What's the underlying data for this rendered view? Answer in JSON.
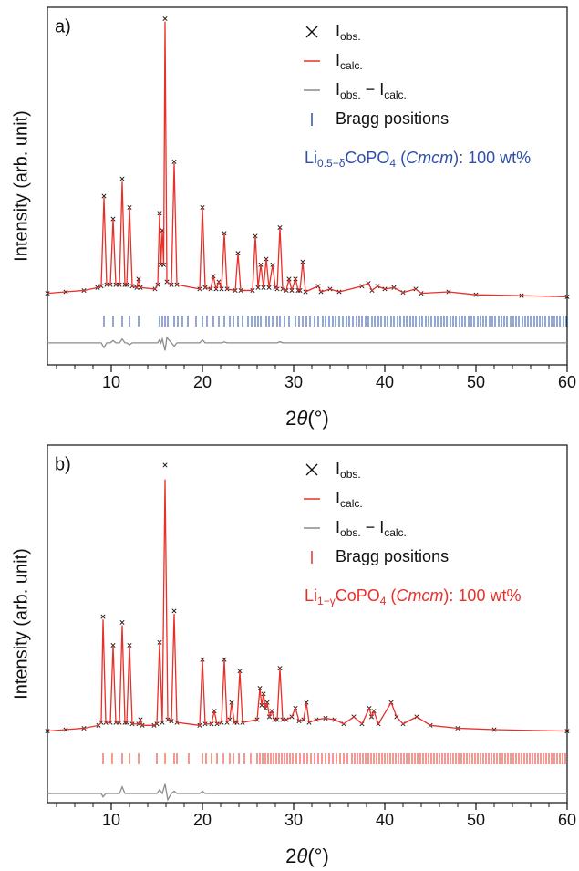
{
  "chart_data": [
    {
      "type": "line",
      "panel_label": "a)",
      "ylabel": "Intensity (arb. unit)",
      "xlabel": [
        {
          "text": "2"
        },
        {
          "text": "θ",
          "style": "italic"
        },
        {
          "text": "(°)"
        }
      ],
      "xlim": [
        3,
        60
      ],
      "ylim": [
        -25,
        100
      ],
      "xticks": [
        10,
        20,
        30,
        40,
        50,
        60
      ],
      "xminorticks": [
        4,
        6,
        8,
        12,
        14,
        16,
        18,
        22,
        24,
        26,
        28,
        32,
        34,
        36,
        38,
        42,
        44,
        46,
        48,
        52,
        54,
        56,
        58
      ],
      "x": [
        3,
        5,
        7,
        8.5,
        8.9,
        9.2,
        9.5,
        9.9,
        10.2,
        10.5,
        10.9,
        11.2,
        11.5,
        11.7,
        12.0,
        12.3,
        12.8,
        13.0,
        13.2,
        14.8,
        15.1,
        15.3,
        15.45,
        15.6,
        15.75,
        15.9,
        16.1,
        16.6,
        16.9,
        17.2,
        19.7,
        20.0,
        20.3,
        20.9,
        21.2,
        21.5,
        21.8,
        22.1,
        22.4,
        22.7,
        23.6,
        23.9,
        24.2,
        25.5,
        25.8,
        26.1,
        26.4,
        26.7,
        27.0,
        27.3,
        27.7,
        28.0,
        28.2,
        28.5,
        28.8,
        29.2,
        29.5,
        29.8,
        30.2,
        30.5,
        30.7,
        31.0,
        31.3,
        32.7,
        33,
        34,
        35,
        37.5,
        38.2,
        38.6,
        39.2,
        40,
        41,
        42,
        43.4,
        44,
        47,
        50,
        55,
        60
      ],
      "series": [
        {
          "name": [
            {
              "text": "I"
            },
            {
              "text": "obs.",
              "style": "sub"
            }
          ],
          "kind": "marker",
          "color": "#111111",
          "values": [
            0,
            0.5,
            1,
            2,
            2.5,
            34,
            3,
            3,
            26,
            3,
            3,
            40,
            3,
            3,
            30,
            2.5,
            2,
            5,
            2,
            1.5,
            3,
            28,
            10,
            22,
            10,
            96,
            4,
            3,
            46,
            3,
            1.5,
            30,
            2,
            1.5,
            6,
            1.5,
            4,
            1.5,
            21,
            1.5,
            1,
            14,
            1,
            1,
            20,
            2,
            10,
            2,
            12,
            2,
            10,
            2,
            1.5,
            23,
            1.5,
            1,
            5,
            1,
            5,
            1,
            1,
            11,
            0.5,
            2.5,
            0.5,
            1.5,
            0.5,
            2.5,
            3.5,
            1,
            2.5,
            1.5,
            2,
            0.3,
            1.5,
            0,
            0.5,
            -0.5,
            -0.8,
            -1.2
          ]
        },
        {
          "name": [
            {
              "text": "I"
            },
            {
              "text": "calc.",
              "style": "sub"
            }
          ],
          "kind": "line",
          "color": "#e8302a",
          "values": [
            0,
            0.5,
            1,
            2,
            2.5,
            33.5,
            3,
            3,
            26,
            3,
            3,
            39,
            3,
            3,
            30,
            2.5,
            2,
            5,
            2,
            1.5,
            3,
            28,
            10,
            22,
            10,
            95,
            4,
            3,
            45.5,
            3,
            1.5,
            30,
            2,
            1.5,
            6,
            1.5,
            4,
            1.5,
            21,
            1.5,
            1,
            14,
            1,
            1,
            20,
            2,
            10,
            2,
            12,
            2,
            10,
            2,
            1.5,
            23,
            1.5,
            1,
            5,
            1,
            5,
            1,
            1,
            11,
            0.5,
            2.5,
            0.5,
            1.5,
            0.5,
            2.5,
            3.5,
            1,
            2.5,
            1.5,
            2,
            0.3,
            1.5,
            0,
            0.5,
            -0.5,
            -0.8,
            -1.2
          ]
        },
        {
          "name": [
            {
              "text": "I"
            },
            {
              "text": "obs.",
              "style": "sub"
            },
            {
              "text": " − I"
            },
            {
              "text": "calc.",
              "style": "sub"
            }
          ],
          "kind": "line",
          "color": "#8c8c8c",
          "values": [
            -17.3,
            -17.3,
            -17.3,
            -17.3,
            -17.3,
            -19,
            -17.3,
            -17.3,
            -16.5,
            -17.3,
            -17.3,
            -16,
            -17.3,
            -17.3,
            -18,
            -17.3,
            -17.3,
            -17.3,
            -17.3,
            -17.3,
            -17.3,
            -16.2,
            -17.3,
            -16,
            -18,
            -20,
            -15.5,
            -17.3,
            -18.5,
            -17.3,
            -17.3,
            -16.3,
            -17.3,
            -17.3,
            -17.3,
            -17.3,
            -17.3,
            -17.3,
            -17,
            -17.3,
            -17.3,
            -17.3,
            -17.3,
            -17.3,
            -17.3,
            -17.3,
            -17.3,
            -17.3,
            -17.3,
            -17.3,
            -17.3,
            -17.3,
            -17.3,
            -16.9,
            -17.3,
            -17.3,
            -17.3,
            -17.3,
            -17.3,
            -17.3,
            -17.3,
            -17.3,
            -17.3,
            -17.3,
            -17.3,
            -17.3,
            -17.3,
            -17.3,
            -17.3,
            -17.3,
            -17.3,
            -17.3,
            -17.3,
            -17.3,
            -17.3,
            -17.3,
            -17.3,
            -17.3,
            -17.3,
            -17.3
          ]
        },
        {
          "name": [
            {
              "text": "Bragg positions"
            }
          ],
          "kind": "tick",
          "color": "#2f4faa",
          "positions": [
            9.2,
            10.2,
            11.2,
            12,
            13,
            15.3,
            15.6,
            15.9,
            16.2,
            16.9,
            17.3,
            17.8,
            18.4,
            19.3,
            20,
            20.5,
            21.2,
            21.8,
            22.4,
            23,
            23.4,
            23.9,
            24.4,
            25,
            25.4,
            25.8,
            26.1,
            26.4,
            27,
            27.3,
            27.7,
            28.2,
            28.5,
            29,
            29.5,
            30.2,
            30.6,
            31,
            31.4,
            31.8,
            32.3,
            32.7,
            33.2,
            33.5,
            33.9,
            34.3,
            34.6,
            35,
            35.4,
            35.8,
            36.1,
            36.5,
            36.9,
            37.2,
            37.5,
            37.9,
            38.2,
            38.6,
            38.9,
            39.3,
            39.6,
            40,
            40.3,
            40.7,
            41,
            41.4,
            41.7,
            42.1,
            42.4,
            42.8,
            43.1,
            43.4,
            43.8,
            44.1,
            44.5,
            44.8,
            45.1,
            45.5,
            45.8,
            46.2,
            46.5,
            46.8,
            47.2,
            47.5,
            47.8,
            48.2,
            48.5,
            48.8,
            49.2,
            49.5,
            49.8,
            50.2,
            50.5,
            50.8,
            51.1,
            51.5,
            51.8,
            52.1,
            52.5,
            52.8,
            53.1,
            53.4,
            53.8,
            54.1,
            54.4,
            54.7,
            55.1,
            55.4,
            55.7,
            56,
            56.4,
            56.7,
            57,
            57.3,
            57.6,
            58,
            58.3,
            58.6,
            58.9,
            59.2,
            59.6,
            59.9
          ]
        }
      ],
      "annotation": [
        {
          "text": "Li"
        },
        {
          "text": "0.5−δ",
          "style": "sub"
        },
        {
          "text": "CoPO"
        },
        {
          "text": "4",
          "style": "sub"
        },
        {
          "text": " ("
        },
        {
          "text": "Cmcm",
          "style": "italic"
        },
        {
          "text": "): 100 wt%"
        }
      ],
      "annotation_color": "#2f4faa"
    },
    {
      "type": "line",
      "panel_label": "b)",
      "ylabel": "Intensity (arb. unit)",
      "xlabel": [
        {
          "text": "2"
        },
        {
          "text": "θ",
          "style": "italic"
        },
        {
          "text": "(°)"
        }
      ],
      "xlim": [
        3,
        60
      ],
      "ylim": [
        -25,
        100
      ],
      "xticks": [
        10,
        20,
        30,
        40,
        50,
        60
      ],
      "xminorticks": [
        4,
        6,
        8,
        12,
        14,
        16,
        18,
        22,
        24,
        26,
        28,
        32,
        34,
        36,
        38,
        42,
        44,
        46,
        48,
        52,
        54,
        56,
        58
      ],
      "x": [
        3,
        5,
        7,
        8.6,
        8.9,
        9.1,
        9.4,
        9.9,
        10.2,
        10.5,
        10.9,
        11.2,
        11.5,
        11.7,
        12.0,
        12.3,
        13.0,
        13.2,
        13.4,
        14.7,
        15.0,
        15.3,
        15.6,
        15.9,
        16.2,
        16.6,
        16.9,
        17.2,
        19.7,
        20.0,
        20.3,
        21.0,
        21.3,
        21.6,
        22.1,
        22.4,
        22.7,
        23.0,
        23.2,
        23.5,
        23.8,
        24.1,
        24.4,
        26.0,
        26.3,
        26.5,
        26.7,
        26.9,
        27.1,
        27.35,
        27.6,
        27.9,
        28.2,
        28.5,
        28.8,
        29.2,
        29.8,
        30.2,
        30.6,
        31.1,
        31.4,
        31.7,
        32.5,
        33.5,
        34.5,
        35.5,
        36.6,
        37.5,
        38.3,
        38.55,
        38.8,
        39.3,
        40.7,
        41.3,
        42,
        43.5,
        45,
        48,
        52,
        60
      ],
      "series": [
        {
          "name": [
            {
              "text": "I"
            },
            {
              "text": "obs.",
              "style": "sub"
            }
          ],
          "kind": "marker",
          "color": "#111111",
          "values": [
            0,
            0.5,
            1,
            2,
            3,
            40,
            3,
            3,
            30,
            3,
            3,
            38,
            3,
            3,
            30,
            2.5,
            2.5,
            4,
            2,
            2,
            2.5,
            31,
            3,
            93,
            4,
            3.5,
            42,
            3,
            2,
            25,
            2.5,
            2.5,
            7,
            2.5,
            3,
            25,
            3,
            4,
            10,
            3,
            3,
            21,
            3,
            4,
            15,
            9,
            13,
            8,
            10,
            5,
            7,
            4,
            4,
            22,
            4,
            4,
            5,
            8,
            3.5,
            4,
            10,
            3,
            4,
            4.5,
            4,
            2.5,
            5,
            2.5,
            8,
            5,
            7,
            2.5,
            10,
            5,
            2.5,
            5,
            2,
            1,
            0.5,
            0
          ]
        },
        {
          "name": [
            {
              "text": "I"
            },
            {
              "text": "calc.",
              "style": "sub"
            }
          ],
          "kind": "line",
          "color": "#e8302a",
          "values": [
            0,
            0.5,
            1,
            2,
            3,
            39,
            3,
            3,
            30,
            3,
            3,
            37,
            3,
            3,
            30,
            2.5,
            2.5,
            4,
            2,
            2,
            2.5,
            31,
            3,
            88,
            4,
            3.5,
            41,
            3,
            2,
            25,
            2.5,
            2.5,
            7,
            2.5,
            3,
            25,
            3,
            4,
            10,
            3,
            3,
            21,
            3,
            4,
            15,
            9,
            13,
            8,
            10,
            5,
            7,
            4,
            4,
            22,
            4,
            4,
            5,
            8,
            3.5,
            4,
            10,
            3,
            4,
            4.5,
            4,
            2.5,
            5,
            2.5,
            8,
            5,
            7,
            2.5,
            10,
            5,
            2.5,
            5,
            2,
            1,
            0.5,
            0
          ]
        },
        {
          "name": [
            {
              "text": "I"
            },
            {
              "text": "obs.",
              "style": "sub"
            },
            {
              "text": " − I"
            },
            {
              "text": "calc.",
              "style": "sub"
            }
          ],
          "kind": "line",
          "color": "#8c8c8c",
          "values": [
            -21.8,
            -21.8,
            -21.8,
            -21.8,
            -21.8,
            -23,
            -21.8,
            -21.8,
            -21.8,
            -21.8,
            -21.8,
            -19.5,
            -21.8,
            -21.8,
            -21.8,
            -21.8,
            -21.8,
            -21.8,
            -21.8,
            -21.8,
            -21.8,
            -20.5,
            -21.8,
            -18.5,
            -24,
            -21.8,
            -21,
            -21.8,
            -21.8,
            -21,
            -21.8,
            -21.8,
            -21.8,
            -21.8,
            -21.8,
            -21.8,
            -21.8,
            -21.8,
            -21.8,
            -21.8,
            -21.8,
            -21.8,
            -21.8,
            -21.8,
            -21.8,
            -21.8,
            -21.8,
            -21.8,
            -21.8,
            -21.8,
            -21.8,
            -21.8,
            -21.8,
            -21.8,
            -21.8,
            -21.8,
            -21.8,
            -21.8,
            -21.8,
            -21.8,
            -21.8,
            -21.8,
            -21.8,
            -21.8,
            -21.8,
            -21.8,
            -21.8,
            -21.8,
            -21.8,
            -21.8,
            -21.8,
            -21.8,
            -21.8,
            -21.8,
            -21.8,
            -21.8,
            -21.8,
            -21.8,
            -21.8,
            -21.8
          ]
        },
        {
          "name": [
            {
              "text": "Bragg positions"
            }
          ],
          "kind": "tick",
          "color": "#e8302a",
          "positions": [
            9.1,
            10.1,
            11.2,
            12,
            13,
            15,
            15.9,
            16.9,
            17.2,
            18.5,
            20,
            20.4,
            21,
            21.6,
            22.3,
            23,
            23.4,
            24,
            24.6,
            25.3,
            26,
            26.3,
            26.6,
            26.9,
            27.2,
            27.5,
            27.8,
            28.1,
            28.4,
            28.7,
            29,
            29.3,
            29.6,
            29.9,
            30.3,
            30.7,
            31.1,
            31.5,
            31.9,
            32.3,
            32.7,
            33.1,
            33.5,
            33.9,
            34.3,
            34.7,
            35.1,
            35.5,
            35.9,
            36.4,
            36.7,
            37,
            37.3,
            37.6,
            37.9,
            38.2,
            38.5,
            38.8,
            39.1,
            39.4,
            39.7,
            40,
            40.3,
            40.6,
            40.9,
            41.2,
            41.5,
            41.8,
            42.1,
            42.4,
            42.7,
            43,
            43.3,
            43.6,
            43.9,
            44.2,
            44.5,
            44.8,
            45.1,
            45.4,
            45.7,
            46,
            46.3,
            46.6,
            46.9,
            47.2,
            47.5,
            47.8,
            48.1,
            48.4,
            48.7,
            49,
            49.3,
            49.6,
            49.9,
            50.2,
            50.5,
            50.8,
            51.1,
            51.4,
            51.7,
            52,
            52.3,
            52.6,
            52.9,
            53.2,
            53.5,
            53.8,
            54.1,
            54.4,
            54.7,
            55,
            55.3,
            55.6,
            55.9,
            56.2,
            56.5,
            56.8,
            57.1,
            57.4,
            57.7,
            58,
            58.3,
            58.6,
            58.9,
            59.2,
            59.5,
            59.8
          ]
        }
      ],
      "annotation": [
        {
          "text": "Li"
        },
        {
          "text": "1−γ",
          "style": "sub"
        },
        {
          "text": "CoPO"
        },
        {
          "text": "4",
          "style": "sub"
        },
        {
          "text": " ("
        },
        {
          "text": "Cmcm",
          "style": "italic"
        },
        {
          "text": "): 100 wt%"
        }
      ],
      "annotation_color": "#e8302a"
    }
  ]
}
